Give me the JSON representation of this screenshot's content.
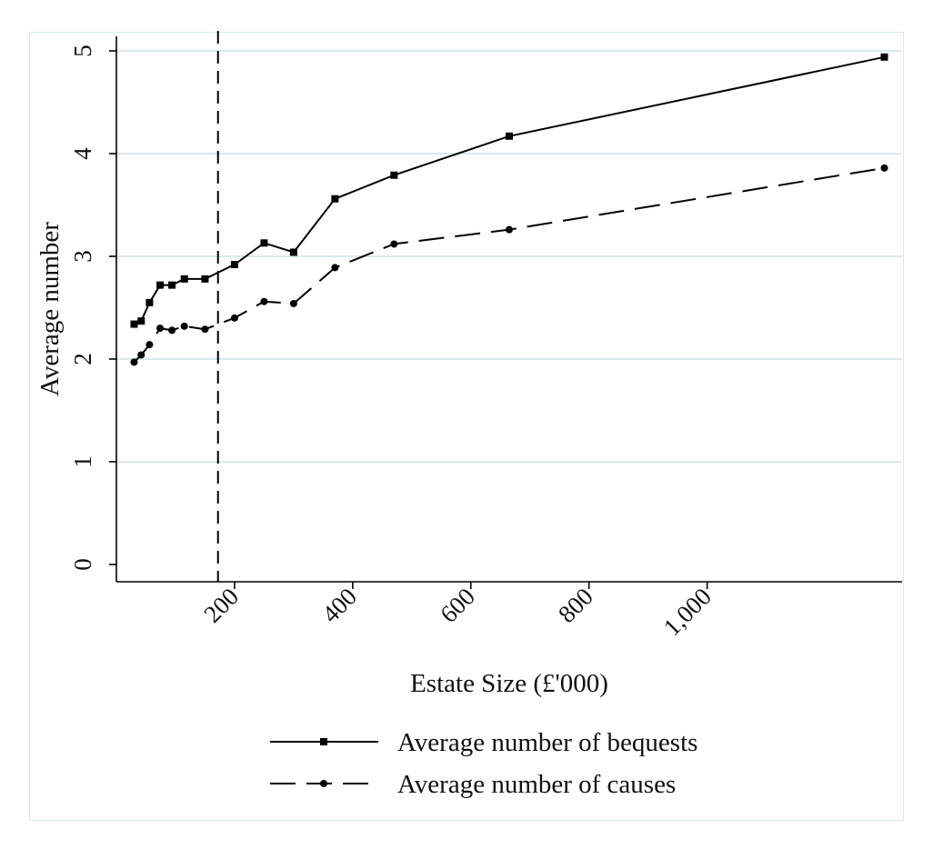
{
  "chart_data": {
    "type": "line",
    "xlabel": "Estate Size (£'000)",
    "ylabel": "Average number",
    "xlim": [
      0,
      1330
    ],
    "ylim": [
      0,
      5
    ],
    "x_ticks": [
      200,
      400,
      600,
      800,
      1000
    ],
    "x_tick_labels": [
      "200",
      "400",
      "600",
      "800",
      "1,000"
    ],
    "y_ticks": [
      0,
      1,
      2,
      3,
      4,
      5
    ],
    "y_tick_labels": [
      "0",
      "1",
      "2",
      "3",
      "4",
      "5"
    ],
    "grid": "horizontal",
    "reference_line_x": 172,
    "legend_position": "bottom",
    "series": [
      {
        "name": "Average number of bequests",
        "line_style": "solid",
        "marker": "square",
        "x": [
          30,
          42,
          56,
          74,
          94,
          115,
          150,
          200,
          250,
          300,
          370,
          470,
          665,
          1300
        ],
        "y": [
          2.34,
          2.37,
          2.55,
          2.72,
          2.72,
          2.78,
          2.78,
          2.92,
          3.13,
          3.04,
          3.56,
          3.79,
          4.17,
          4.94
        ]
      },
      {
        "name": "Average number of causes",
        "line_style": "dashed",
        "marker": "circle",
        "x": [
          30,
          42,
          56,
          74,
          94,
          115,
          150,
          200,
          250,
          300,
          370,
          470,
          665,
          1300
        ],
        "y": [
          1.97,
          2.04,
          2.14,
          2.3,
          2.28,
          2.32,
          2.29,
          2.4,
          2.56,
          2.54,
          2.89,
          3.12,
          3.26,
          3.86
        ]
      }
    ],
    "colors": {
      "line": "#000000",
      "grid": "#dbe9ed",
      "frame": "#d9e8ec"
    }
  }
}
